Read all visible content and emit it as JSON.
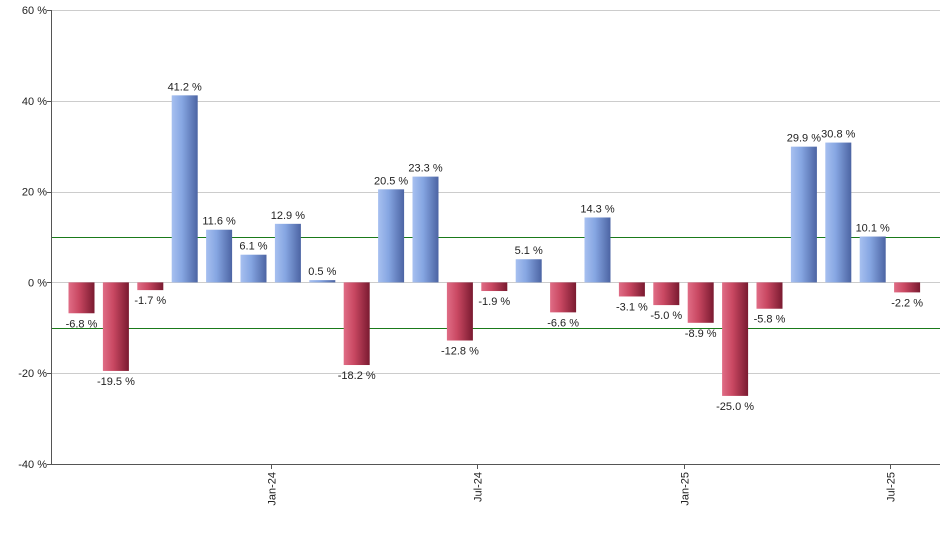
{
  "chart_data": {
    "type": "bar",
    "title": "",
    "xlabel": "",
    "ylabel": "",
    "ylim": [
      -40,
      60
    ],
    "y_ticks": [
      60,
      40,
      20,
      0,
      -20,
      -40
    ],
    "y_tick_labels": [
      "60 %",
      "40 %",
      "20 %",
      "0 %",
      "-20 %",
      "-40 %"
    ],
    "grid": true,
    "reference_lines": [
      10,
      -10
    ],
    "values": [
      -6.8,
      -19.5,
      -1.7,
      41.2,
      11.6,
      6.1,
      12.9,
      0.5,
      -18.2,
      20.5,
      23.3,
      -12.8,
      -1.9,
      5.1,
      -6.6,
      14.3,
      -3.1,
      -5.0,
      -8.9,
      -25.0,
      -5.8,
      29.9,
      30.8,
      10.1,
      -2.2
    ],
    "value_labels": [
      "-6.8 %",
      "-19.5 %",
      "-1.7 %",
      "41.2 %",
      "11.6 %",
      "6.1 %",
      "12.9 %",
      "0.5 %",
      "-18.2 %",
      "20.5 %",
      "23.3 %",
      "-12.8 %",
      "-1.9 %",
      "5.1 %",
      "-6.6 %",
      "14.3 %",
      "-3.1 %",
      "-5.0 %",
      "-8.9 %",
      "-25.0 %",
      "-5.8 %",
      "29.9 %",
      "30.8 %",
      "10.1 %",
      "-2.2 %"
    ],
    "x_tick_labels": [
      {
        "label": "Jan-24",
        "after_bar": 5
      },
      {
        "label": "Jul-24",
        "after_bar": 11
      },
      {
        "label": "Jan-25",
        "after_bar": 17
      },
      {
        "label": "Jul-25",
        "after_bar": 23
      }
    ],
    "colors": {
      "positive": "#7f9fdc",
      "negative": "#c2445e",
      "reference_line": "#1a7a1a",
      "grid": "#cccccc",
      "axis": "#555555"
    }
  }
}
